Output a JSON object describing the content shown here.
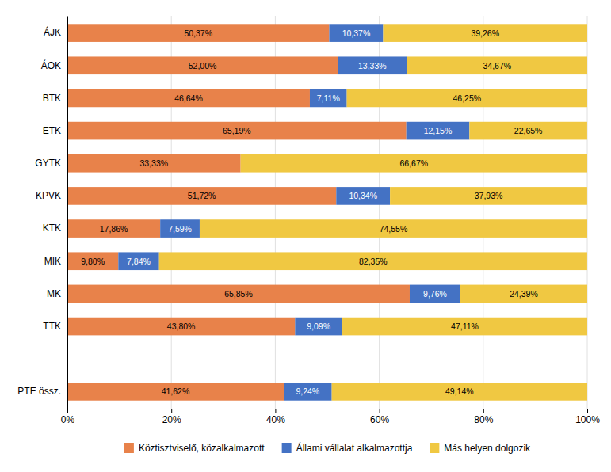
{
  "chart_data": {
    "type": "bar",
    "orientation": "horizontal",
    "stacked": true,
    "categories": [
      "ÁJK",
      "ÁOK",
      "BTK",
      "ETK",
      "GYTK",
      "KPVK",
      "KTK",
      "MIK",
      "MK",
      "TTK",
      null,
      "PTE össz."
    ],
    "series": [
      {
        "name": "Köztisztviselő, közalkalmazott",
        "color": "#E8824A",
        "values": [
          50.37,
          52.0,
          46.64,
          65.19,
          33.33,
          51.72,
          17.86,
          9.8,
          65.85,
          43.8,
          0,
          41.62
        ],
        "value_labels": [
          "50,37%",
          "52,00%",
          "46,64%",
          "65,19%",
          "33,33%",
          "51,72%",
          "17,86%",
          "9,80%",
          "65,85%",
          "43,80%",
          null,
          "41,62%"
        ]
      },
      {
        "name": "Állami vállalat alkalmazottja",
        "color": "#4472C4",
        "values": [
          10.37,
          13.33,
          7.11,
          12.15,
          0.0,
          10.34,
          7.59,
          7.84,
          9.76,
          9.09,
          0,
          9.24
        ],
        "value_labels": [
          "10,37%",
          "13,33%",
          "7,11%",
          "12,15%",
          null,
          "10,34%",
          "7,59%",
          "7,84%",
          "9,76%",
          "9,09%",
          null,
          "9,24%"
        ]
      },
      {
        "name": "Más helyen dolgozik",
        "color": "#F0C842",
        "values": [
          39.26,
          34.67,
          46.25,
          22.65,
          66.67,
          37.93,
          74.55,
          82.35,
          24.39,
          47.11,
          0,
          49.14
        ],
        "value_labels": [
          "39,26%",
          "34,67%",
          "46,25%",
          "22,65%",
          "66,67%",
          "37,93%",
          "74,55%",
          "82,35%",
          "24,39%",
          "47,11%",
          null,
          "49,14%"
        ]
      }
    ],
    "xlim": [
      0,
      100
    ],
    "xticks": [
      {
        "value": 0,
        "label": "0%"
      },
      {
        "value": 20,
        "label": "20%"
      },
      {
        "value": 40,
        "label": "40%"
      },
      {
        "value": 60,
        "label": "60%"
      },
      {
        "value": 80,
        "label": "80%"
      },
      {
        "value": 100,
        "label": "100%"
      }
    ],
    "grid": true,
    "legend": "bottom",
    "data_labels": true
  }
}
